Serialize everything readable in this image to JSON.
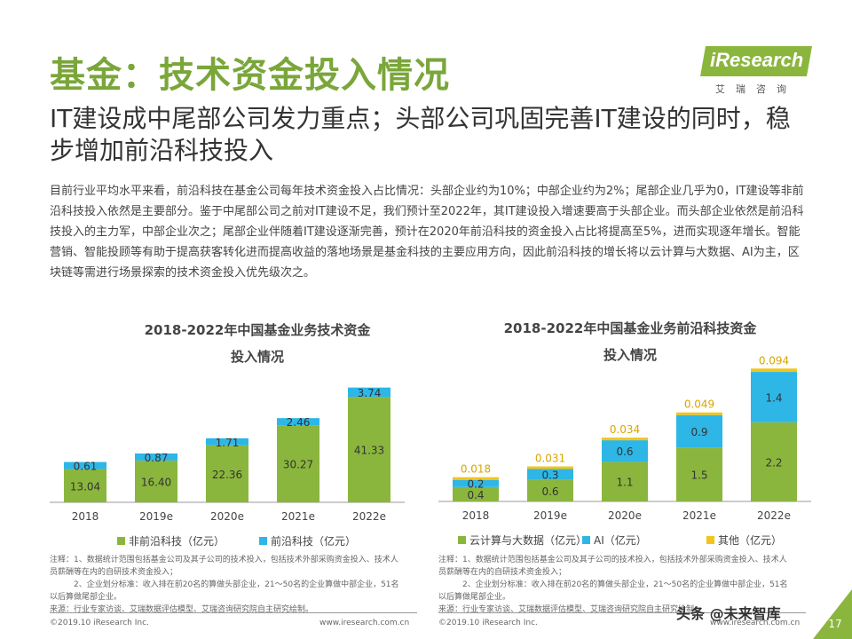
{
  "title": "基金：技术资金投入情况",
  "logo": {
    "name": "iResearch",
    "sub": "艾瑞咨询"
  },
  "subtitle": "IT建设成中尾部公司发力重点；头部公司巩固完善IT建设的同时，稳步增加前沿科技投入",
  "paragraph": "目前行业平均水平来看，前沿科技在基金公司每年技术资金投入占比情况：头部企业约为10%；中部企业约为2%；尾部企业几乎为0，IT建设等非前沿科技投入依然是主要部分。鉴于中尾部公司之前对IT建设不足，我们预计至2022年，其IT建设投入增速要高于头部企业。而头部企业依然是前沿科技投入的主力军，中部企业次之；尾部企业伴随着IT建设逐渐完善，预计在2020年前沿科技的资金投入占比将提高至5%，进而实现逐年增长。智能营销、智能投顾等有助于提高获客转化进而提高收益的落地场景是基金科技的主要应用方向，因此前沿科技的增长将以云计算与大数据、AI为主，区块链等需进行场景探索的技术资金投入优先级次之。",
  "chart_data": [
    {
      "type": "bar",
      "stacked": true,
      "title": "2018-2022年中国基金业务技术资金投入情况",
      "title_lines": [
        "2018-2022年中国基金业务技术资金",
        "投入情况"
      ],
      "categories": [
        "2018",
        "2019e",
        "2020e",
        "2021e",
        "2022e"
      ],
      "series": [
        {
          "name": "非前沿科技（亿元）",
          "color": "#8bb63d",
          "values": [
            13.04,
            16.4,
            22.36,
            30.27,
            41.33
          ],
          "labels": [
            "13.04",
            "16.40",
            "22.36",
            "30.27",
            "41.33"
          ]
        },
        {
          "name": "前沿科技（亿元）",
          "color": "#2eb6e6",
          "values": [
            0.61,
            0.87,
            1.71,
            2.46,
            3.74
          ],
          "labels": [
            "0.61",
            "0.87",
            "1.71",
            "2.46",
            "3.74"
          ]
        }
      ],
      "ylim": [
        0,
        46
      ],
      "legend": "bottom"
    },
    {
      "type": "bar",
      "stacked": true,
      "title": "2018-2022年中国基金业务前沿科技资金投入情况",
      "title_lines": [
        "2018-2022年中国基金业务前沿科技资金",
        "投入情况"
      ],
      "categories": [
        "2018",
        "2019e",
        "2020e",
        "2021e",
        "2022e"
      ],
      "series": [
        {
          "name": "云计算与大数据（亿元）",
          "color": "#8bb63d",
          "values": [
            0.4,
            0.6,
            1.1,
            1.5,
            2.2
          ],
          "labels": [
            "0.4",
            "0.6",
            "1.1",
            "1.5",
            "2.2"
          ]
        },
        {
          "name": "AI（亿元）",
          "color": "#2eb6e6",
          "values": [
            0.2,
            0.3,
            0.6,
            0.9,
            1.4
          ],
          "labels": [
            "0.2",
            "0.3",
            "0.6",
            "0.9",
            "1.4"
          ]
        },
        {
          "name": "其他（亿元）",
          "color": "#f2c51b",
          "values": [
            0.018,
            0.031,
            0.034,
            0.049,
            0.094
          ],
          "labels": [
            "0.018",
            "0.031",
            "0.034",
            "0.049",
            "0.094"
          ]
        }
      ],
      "ylim": [
        0,
        3.7
      ],
      "legend": "bottom"
    }
  ],
  "notes": {
    "left": "注释：1、数据统计范围包括基金公司及其子公司的技术投入，包括技术外部采购资金投入、技术人员薪酬等在内的自研技术资金投入；\n　　　2、企业划分标准：收入排在前20名的算做头部企业，21～50名的企业算做中部企业，51名以后算做尾部企业。\n来源：行业专家访谈、艾瑞数据评估模型、艾瑞咨询研究院自主研究绘制。",
    "right": "注释：1、数据统计范围包括基金公司及其子公司的技术投入，包括技术外部采购资金投入、技术人员薪酬等在内的自研技术资金投入；\n　　　2、企业划分标准：收入排在前20名的算做头部企业，21～50名的企业算做中部企业，51名以后算做尾部企业。\n来源：行业专家访谈、艾瑞数据评估模型、艾瑞咨询研究院自主研究绘制。"
  },
  "footer": {
    "left_copyright": "©2019.10 iResearch Inc.",
    "left_url": "www.iresearch.com.cn",
    "right_copyright": "©2019.10 iResearch Inc.",
    "right_url": "www.iresearch.com.cn"
  },
  "watermark": "头条 @未来智库",
  "page_number": "17"
}
